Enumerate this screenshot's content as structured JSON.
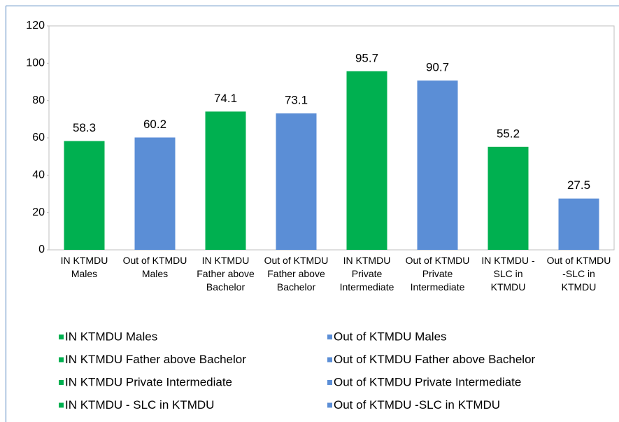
{
  "chart_data": {
    "type": "bar",
    "categories": [
      "IN KTMDU Males",
      "Out of KTMDU Males",
      "IN KTMDU Father above Bachelor",
      "Out of KTMDU Father above Bachelor",
      "IN KTMDU Private Intermediate",
      "Out of KTMDU Private Intermediate",
      "IN KTMDU - SLC in KTMDU",
      "Out of KTMDU -SLC in KTMDU"
    ],
    "values": [
      58.3,
      60.2,
      74.1,
      73.1,
      95.7,
      90.7,
      55.2,
      27.5
    ],
    "colors": [
      "#00b050",
      "#5b8ed6",
      "#00b050",
      "#5b8ed6",
      "#00b050",
      "#5b8ed6",
      "#00b050",
      "#5b8ed6"
    ],
    "ylim": [
      0,
      120
    ],
    "yticks": [
      0,
      20,
      40,
      60,
      80,
      100,
      120
    ],
    "grid": false,
    "legend": "bottom"
  }
}
